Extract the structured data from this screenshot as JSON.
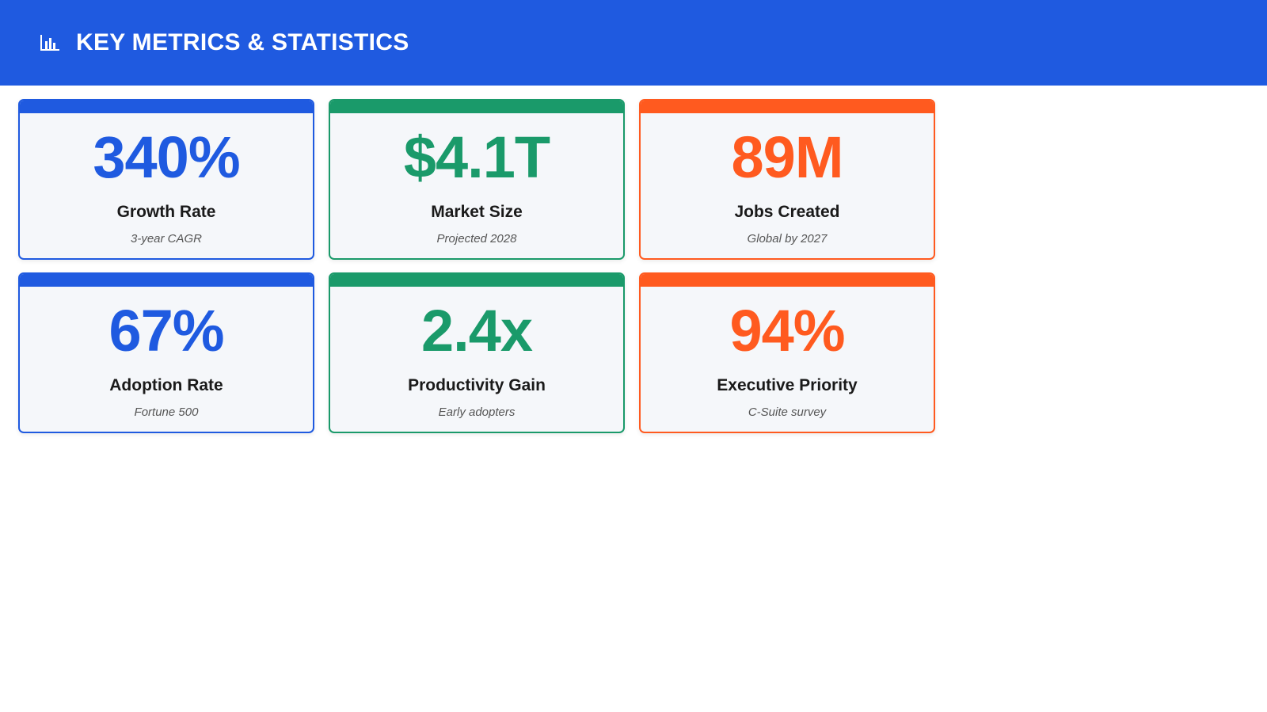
{
  "header": {
    "title": "KEY METRICS & STATISTICS",
    "icon": "bar-chart-icon",
    "background": "#1f5ae0"
  },
  "colors": {
    "blue": "#1f5ae0",
    "green": "#1a9a6a",
    "orange": "#ff5a1f"
  },
  "metrics": [
    {
      "value": "340%",
      "label": "Growth Rate",
      "sub": "3-year CAGR",
      "color": "#1f5ae0"
    },
    {
      "value": "$4.1T",
      "label": "Market Size",
      "sub": "Projected 2028",
      "color": "#1a9a6a"
    },
    {
      "value": "89M",
      "label": "Jobs Created",
      "sub": "Global by 2027",
      "color": "#ff5a1f"
    },
    {
      "value": "67%",
      "label": "Adoption Rate",
      "sub": "Fortune 500",
      "color": "#1f5ae0"
    },
    {
      "value": "2.4x",
      "label": "Productivity Gain",
      "sub": "Early adopters",
      "color": "#1a9a6a"
    },
    {
      "value": "94%",
      "label": "Executive Priority",
      "sub": "C-Suite survey",
      "color": "#ff5a1f"
    }
  ]
}
